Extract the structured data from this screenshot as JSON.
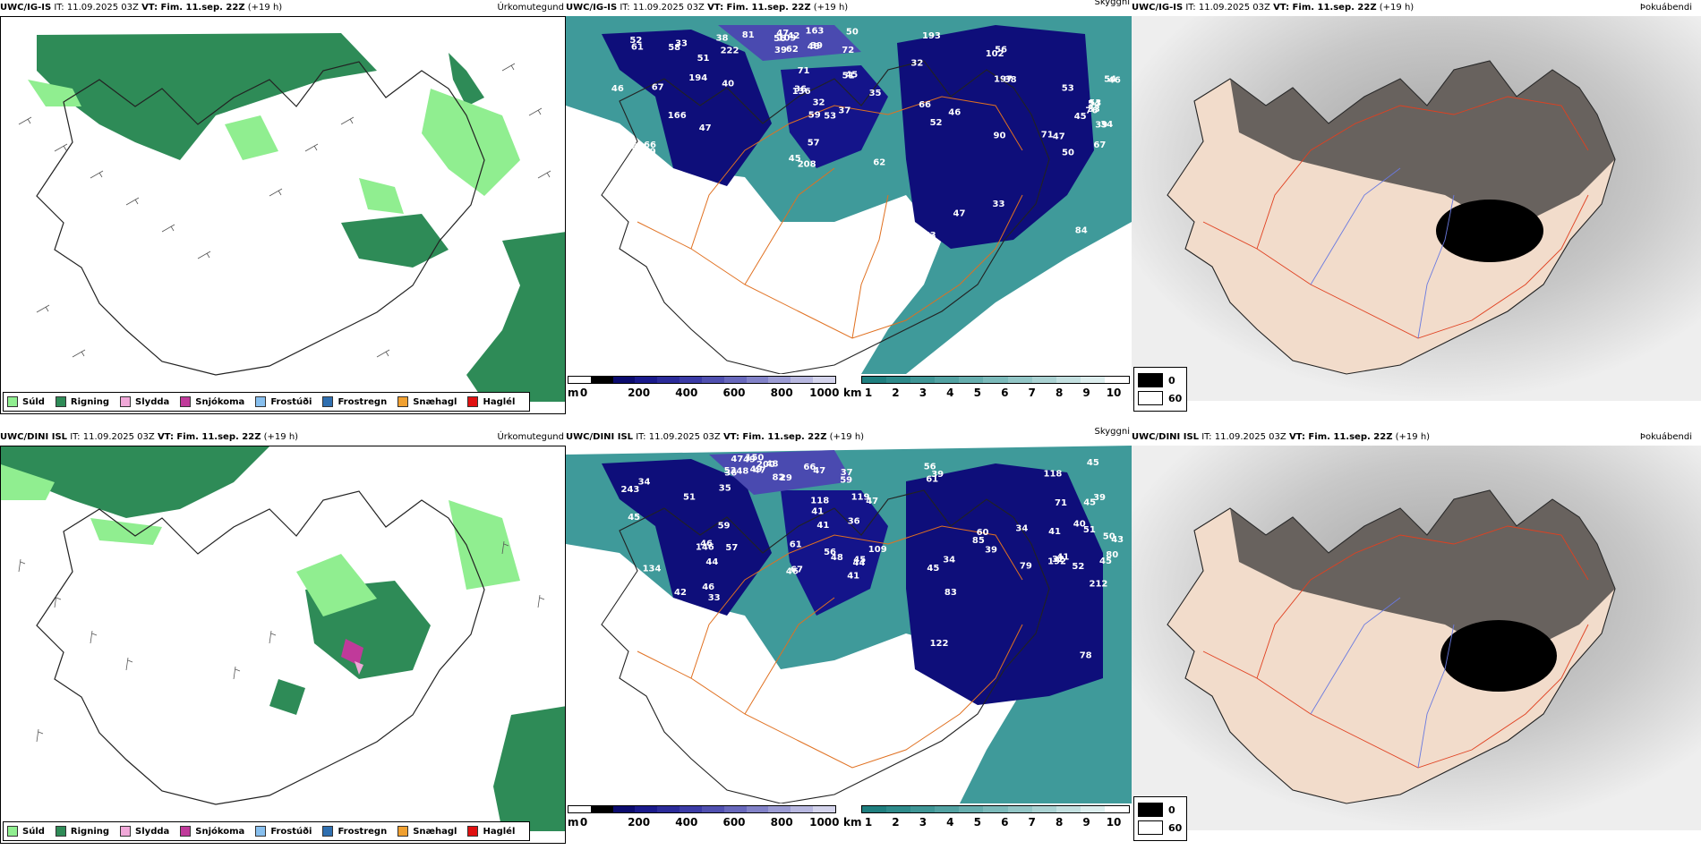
{
  "panels": [
    {
      "model": "UWC/IG-IS",
      "it": "IT: 11.09.2025 03Z",
      "vt": "VT: Fim. 11.sep. 22Z",
      "lead": "(+19 h)",
      "title": "Úrkomutegund"
    },
    {
      "model": "UWC/IG-IS",
      "it": "IT: 11.09.2025 03Z",
      "vt": "VT: Fim. 11.sep. 22Z",
      "lead": "(+19 h)",
      "title": "Skyggni"
    },
    {
      "model": "UWC/IG-IS",
      "it": "IT: 11.09.2025 03Z",
      "vt": "VT: Fim. 11.sep. 22Z",
      "lead": "(+19 h)",
      "title": "Þokuábendi"
    },
    {
      "model": "UWC/DINI ISL",
      "it": "IT: 11.09.2025 03Z",
      "vt": "VT: Fim. 11.sep. 22Z",
      "lead": "(+19 h)",
      "title": "Úrkomutegund"
    },
    {
      "model": "UWC/DINI ISL",
      "it": "IT: 11.09.2025 03Z",
      "vt": "VT: Fim. 11.sep. 22Z",
      "lead": "(+19 h)",
      "title": "Skyggni"
    },
    {
      "model": "UWC/DINI ISL",
      "it": "IT: 11.09.2025 03Z",
      "vt": "VT: Fim. 11.sep. 22Z",
      "lead": "(+19 h)",
      "title": "Þokuábendi"
    }
  ],
  "precip_legend": [
    {
      "label": "Súld",
      "color": "#90ee90"
    },
    {
      "label": "Rigning",
      "color": "#2e8b57"
    },
    {
      "label": "Slydda",
      "color": "#f0a8d8"
    },
    {
      "label": "Snjókoma",
      "color": "#c03a9a"
    },
    {
      "label": "Frostúði",
      "color": "#87bfee"
    },
    {
      "label": "Frostregn",
      "color": "#2f6fb0"
    },
    {
      "label": "Snæhagl",
      "color": "#f0a030"
    },
    {
      "label": "Haglél",
      "color": "#e01010"
    }
  ],
  "height_bar": {
    "unit": "m",
    "ticks": [
      "0",
      "200",
      "400",
      "600",
      "800",
      "1000"
    ],
    "colors": [
      "#ffffff",
      "#000000",
      "#0b0b6e",
      "#1a1a8c",
      "#2b2b9a",
      "#3b3ba6",
      "#5050b0",
      "#6868bc",
      "#8282c8",
      "#9c9cd4",
      "#b8b8e0",
      "#d4d4ec"
    ]
  },
  "visibility_bar": {
    "unit": "km",
    "ticks": [
      "1",
      "2",
      "3",
      "4",
      "5",
      "6",
      "7",
      "8",
      "9",
      "10"
    ],
    "colors": [
      "#1f7f7f",
      "#2e8b8b",
      "#3f9696",
      "#52a2a2",
      "#66aeae",
      "#7bbaba",
      "#92c6c6",
      "#aad2d2",
      "#c3e0e0",
      "#ddeeee",
      "#ffffff"
    ]
  },
  "fog_legend": [
    {
      "value": "0",
      "color": "#000000"
    },
    {
      "value": "60",
      "color": "#ffffff"
    }
  ],
  "labels_top": [
    "166",
    "136",
    "90",
    "222",
    "54",
    "66",
    "45",
    "38",
    "163",
    "76",
    "61",
    "62",
    "52",
    "50",
    "45",
    "194",
    "208",
    "197",
    "42",
    "47",
    "67",
    "45",
    "47",
    "47",
    "53",
    "47",
    "36",
    "56",
    "38",
    "39",
    "40",
    "53",
    "33",
    "56",
    "53",
    "51",
    "57",
    "84",
    "72",
    "34",
    "33",
    "32",
    "46",
    "48",
    "50",
    "46",
    "37",
    "63",
    "39",
    "33",
    "38",
    "35",
    "32",
    "39",
    "67",
    "109",
    "71",
    "193",
    "62",
    "46",
    "58",
    "59",
    "66",
    "81",
    "54",
    "52",
    "51",
    "102",
    "109",
    "71"
  ],
  "labels_bottom": [
    "146",
    "109",
    "122",
    "150",
    "40",
    "46",
    "67",
    "118",
    "200",
    "212",
    "243",
    "61",
    "61",
    "59",
    "52",
    "59",
    "48",
    "79",
    "48",
    "41",
    "53",
    "47",
    "85",
    "37",
    "39",
    "34",
    "45",
    "45",
    "49",
    "50",
    "42",
    "41",
    "60",
    "47",
    "43",
    "44",
    "44",
    "34",
    "29",
    "32",
    "35",
    "119",
    "78",
    "82",
    "80",
    "134",
    "46",
    "39",
    "66",
    "41",
    "57",
    "41",
    "45",
    "47",
    "45",
    "33",
    "36",
    "56",
    "48",
    "71",
    "46",
    "41",
    "34",
    "36",
    "45",
    "45",
    "56",
    "83",
    "49",
    "192",
    "51",
    "118",
    "39",
    "47",
    "51"
  ]
}
